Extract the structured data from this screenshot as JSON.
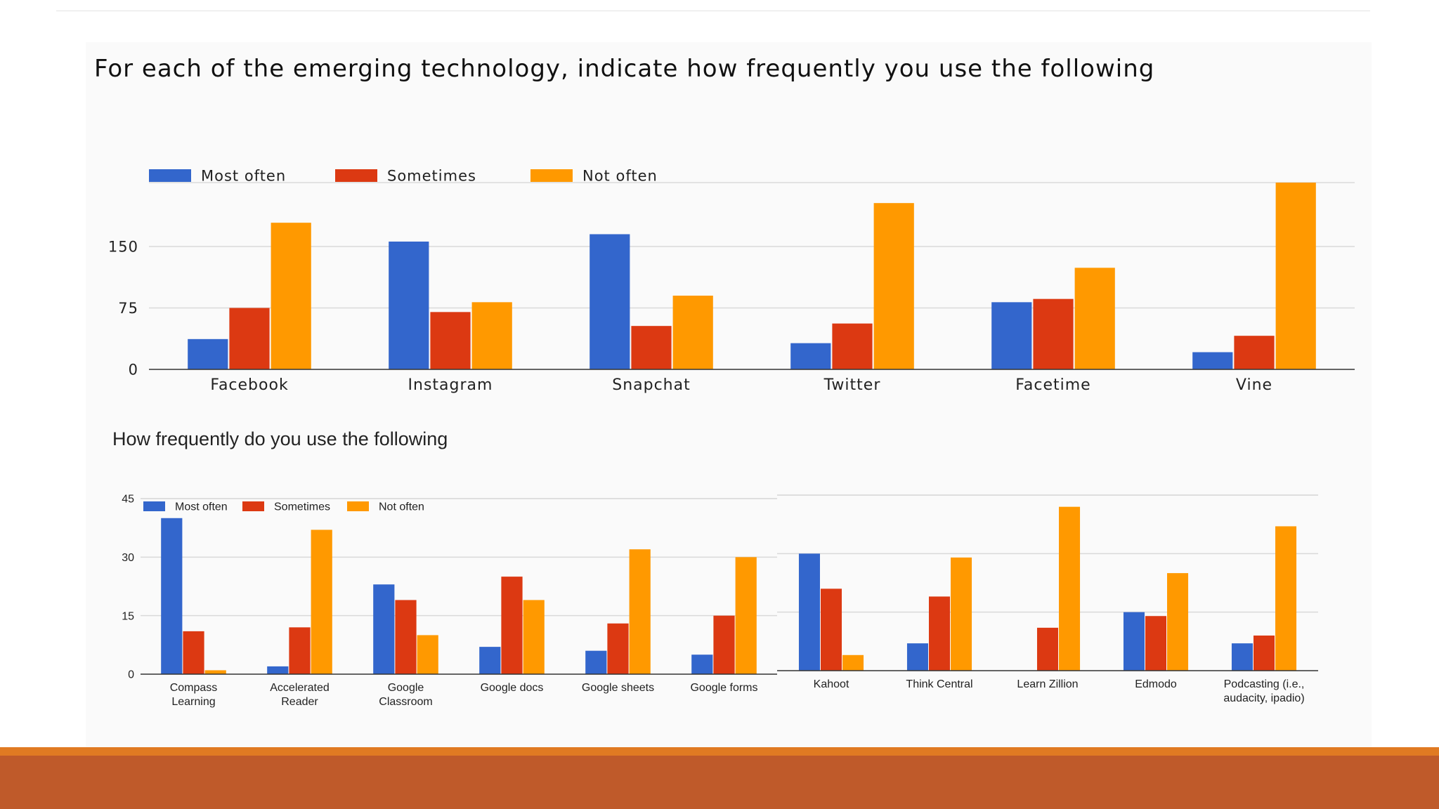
{
  "slide": {
    "title": "For each of the emerging technology, indicate how frequently you use the following",
    "subtitle": "How frequently do you use the following"
  },
  "colors": {
    "most": "#3366cc",
    "sometimes": "#dc3912",
    "not": "#ff9900",
    "grid": "#d9d9d9",
    "axis": "#333333",
    "accent_orange": "#e07a22",
    "accent_rust": "#bf5a2a"
  },
  "chart_data": [
    {
      "type": "bar",
      "title": "For each of the emerging technology, indicate how frequently you use the following",
      "legend_position": "top-left",
      "categories": [
        "Facebook",
        "Instagram",
        "Snapchat",
        "Twitter",
        "Facetime",
        "Vine"
      ],
      "series": [
        {
          "name": "Most often",
          "color": "#3366cc",
          "values": [
            37,
            156,
            165,
            32,
            82,
            21
          ]
        },
        {
          "name": "Sometimes",
          "color": "#dc3912",
          "values": [
            75,
            70,
            53,
            56,
            86,
            41
          ]
        },
        {
          "name": "Not often",
          "color": "#ff9900",
          "values": [
            179,
            82,
            90,
            203,
            124,
            228
          ]
        }
      ],
      "yticks": [
        "0",
        "75",
        "150"
      ],
      "ytick_values": [
        0,
        75,
        150
      ],
      "ylim": [
        0,
        228
      ],
      "grid": true
    },
    {
      "type": "bar",
      "title": "How frequently do you use the following",
      "legend_position": "top-left",
      "categories": [
        "Compass|Learning",
        "Accelerated|Reader",
        "Google|Classroom",
        "Google docs",
        "Google sheets",
        "Google forms"
      ],
      "series": [
        {
          "name": "Most often",
          "color": "#3366cc",
          "values": [
            40,
            2,
            23,
            7,
            6,
            5
          ]
        },
        {
          "name": "Sometimes",
          "color": "#dc3912",
          "values": [
            11,
            12,
            19,
            25,
            13,
            15
          ]
        },
        {
          "name": "Not often",
          "color": "#ff9900",
          "values": [
            1,
            37,
            10,
            19,
            32,
            30
          ]
        }
      ],
      "yticks": [
        "0",
        "15",
        "30",
        "45"
      ],
      "ytick_values": [
        0,
        15,
        30,
        45
      ],
      "ylim": [
        0,
        45
      ],
      "grid": true
    },
    {
      "type": "bar",
      "legend_position": "none",
      "categories": [
        "Kahoot",
        "Think Central",
        "Learn Zillion",
        "Edmodo",
        "Podcasting (i.e.,|audacity, ipadio)"
      ],
      "series": [
        {
          "name": "Most often",
          "color": "#3366cc",
          "values": [
            30,
            7,
            0,
            15,
            7
          ]
        },
        {
          "name": "Sometimes",
          "color": "#dc3912",
          "values": [
            21,
            19,
            11,
            14,
            9
          ]
        },
        {
          "name": "Not often",
          "color": "#ff9900",
          "values": [
            4,
            29,
            42,
            25,
            37
          ]
        }
      ],
      "yticks": [],
      "ytick_values": [
        0,
        15,
        30,
        45
      ],
      "ylim": [
        0,
        45
      ],
      "grid": true
    }
  ]
}
